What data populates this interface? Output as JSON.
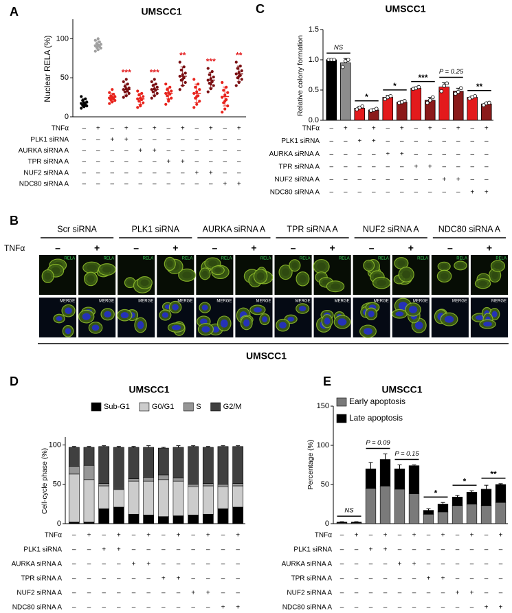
{
  "chart_data": [
    {
      "panel": "A",
      "type": "dot",
      "title": "UMSCC1",
      "ylabel": "Nuclear RELA (%)",
      "ylim": [
        0,
        125
      ],
      "yticks": [
        0,
        50,
        100
      ],
      "colors": [
        "#000000",
        "#a0a0a0",
        "#e8231c",
        "#7a0f12",
        "#e8231c",
        "#7a0f12",
        "#e8231c",
        "#7a0f12",
        "#e8231c",
        "#7a0f12",
        "#e8231c",
        "#7a0f12"
      ],
      "groups": [
        {
          "points": [
            11,
            13,
            14,
            15,
            16,
            17,
            18,
            19,
            21,
            23,
            26,
            14
          ],
          "mean": 18,
          "sd": 5
        },
        {
          "points": [
            84,
            86,
            88,
            89,
            90,
            91,
            92,
            93,
            94,
            96,
            98,
            100
          ],
          "mean": 92,
          "sd": 5
        },
        {
          "points": [
            17,
            19,
            21,
            22,
            23,
            24,
            25,
            26,
            27,
            29,
            31,
            35
          ],
          "mean": 25,
          "sd": 5
        },
        {
          "points": [
            25,
            27,
            30,
            32,
            33,
            35,
            36,
            37,
            39,
            42,
            45,
            48
          ],
          "mean": 35,
          "sd": 7
        },
        {
          "points": [
            12,
            15,
            18,
            20,
            22,
            23,
            24,
            26,
            28,
            30,
            33,
            14
          ],
          "mean": 23,
          "sd": 7
        },
        {
          "points": [
            24,
            27,
            30,
            32,
            34,
            35,
            36,
            38,
            40,
            42,
            45,
            48
          ],
          "mean": 35,
          "sd": 7
        },
        {
          "points": [
            16,
            20,
            24,
            27,
            29,
            30,
            31,
            33,
            35,
            38,
            42,
            22
          ],
          "mean": 30,
          "sd": 7
        },
        {
          "points": [
            35,
            40,
            44,
            47,
            50,
            52,
            54,
            56,
            60,
            64,
            70,
            48
          ],
          "mean": 52,
          "sd": 12
        },
        {
          "points": [
            12,
            16,
            20,
            24,
            27,
            30,
            32,
            35,
            38,
            42,
            48,
            26
          ],
          "mean": 30,
          "sd": 12
        },
        {
          "points": [
            32,
            36,
            40,
            43,
            45,
            47,
            49,
            51,
            54,
            58,
            62,
            42
          ],
          "mean": 47,
          "sd": 10
        },
        {
          "points": [
            6,
            10,
            14,
            18,
            22,
            25,
            28,
            31,
            34,
            38,
            44,
            20
          ],
          "mean": 26,
          "sd": 12
        },
        {
          "points": [
            40,
            44,
            48,
            50,
            53,
            55,
            57,
            59,
            62,
            65,
            70,
            52
          ],
          "mean": 55,
          "sd": 10
        }
      ],
      "annotations": [
        null,
        null,
        null,
        "***",
        null,
        "***",
        null,
        "**",
        null,
        "***",
        null,
        "**"
      ],
      "conditions": [
        {
          "label": "TNFα",
          "signs": [
            "–",
            "+",
            "–",
            "+",
            "–",
            "+",
            "–",
            "+",
            "–",
            "+",
            "–",
            "+"
          ]
        },
        {
          "label": "PLK1 siRNA",
          "signs": [
            "–",
            "–",
            "+",
            "+",
            "–",
            "–",
            "–",
            "–",
            "–",
            "–",
            "–",
            "–"
          ]
        },
        {
          "label": "AURKA siRNA A",
          "signs": [
            "–",
            "–",
            "–",
            "–",
            "+",
            "+",
            "–",
            "–",
            "–",
            "–",
            "–",
            "–"
          ]
        },
        {
          "label": "TPR siRNA A",
          "signs": [
            "–",
            "–",
            "–",
            "–",
            "–",
            "–",
            "+",
            "+",
            "–",
            "–",
            "–",
            "–"
          ]
        },
        {
          "label": "NUF2 siRNA A",
          "signs": [
            "–",
            "–",
            "–",
            "–",
            "–",
            "–",
            "–",
            "–",
            "+",
            "+",
            "–",
            "–"
          ]
        },
        {
          "label": "NDC80 siRNA A",
          "signs": [
            "–",
            "–",
            "–",
            "–",
            "–",
            "–",
            "–",
            "–",
            "–",
            "–",
            "+",
            "+"
          ]
        }
      ]
    },
    {
      "panel": "C",
      "type": "bar",
      "title": "UMSCC1",
      "ylabel": "Relative colony formation",
      "ylim": [
        0,
        1.5
      ],
      "yticks": [
        {
          "value": 0,
          "label": "0.0"
        },
        {
          "value": 0.5,
          "label": "0.5"
        },
        {
          "value": 1,
          "label": "1.0"
        },
        {
          "value": 1.5,
          "label": "1.5"
        }
      ],
      "colors": [
        "#000000",
        "#8c8c8c",
        "#e31a1c",
        "#8b1a1a",
        "#e31a1c",
        "#8b1a1a",
        "#e31a1c",
        "#8b1a1a",
        "#e31a1c",
        "#8b1a1a",
        "#e31a1c",
        "#8b1a1a"
      ],
      "values": [
        1.0,
        0.95,
        0.2,
        0.17,
        0.38,
        0.3,
        0.53,
        0.33,
        0.55,
        0.48,
        0.38,
        0.27
      ],
      "errors": [
        0,
        0.07,
        0.03,
        0.02,
        0.03,
        0.02,
        0.02,
        0.05,
        0.07,
        0.05,
        0.02,
        0.02
      ],
      "points": [
        [
          1,
          1,
          1
        ],
        [
          0.88,
          0.98,
          1.0
        ],
        [
          0.18,
          0.21,
          0.23
        ],
        [
          0.16,
          0.17,
          0.19
        ],
        [
          0.35,
          0.38,
          0.4
        ],
        [
          0.29,
          0.3,
          0.32
        ],
        [
          0.52,
          0.53,
          0.55
        ],
        [
          0.29,
          0.33,
          0.38
        ],
        [
          0.48,
          0.57,
          0.61
        ],
        [
          0.44,
          0.47,
          0.53
        ],
        [
          0.36,
          0.38,
          0.4
        ],
        [
          0.25,
          0.28,
          0.29
        ]
      ],
      "pair_labels": [
        "NS",
        "*",
        "*",
        "***",
        "P = 0.25",
        "**"
      ],
      "conditions": [
        {
          "label": "TNFα",
          "signs": [
            "–",
            "+",
            "–",
            "+",
            "–",
            "+",
            "–",
            "+",
            "–",
            "+",
            "–",
            "+"
          ]
        },
        {
          "label": "PLK1 siRNA",
          "signs": [
            "–",
            "–",
            "+",
            "+",
            "–",
            "–",
            "–",
            "–",
            "–",
            "–",
            "–",
            "–"
          ]
        },
        {
          "label": "AURKA siRNA A",
          "signs": [
            "–",
            "–",
            "–",
            "–",
            "+",
            "+",
            "–",
            "–",
            "–",
            "–",
            "–",
            "–"
          ]
        },
        {
          "label": "TPR siRNA A",
          "signs": [
            "–",
            "–",
            "–",
            "–",
            "–",
            "–",
            "+",
            "+",
            "–",
            "–",
            "–",
            "–"
          ]
        },
        {
          "label": "NUF2 siRNA A",
          "signs": [
            "–",
            "–",
            "–",
            "–",
            "–",
            "–",
            "–",
            "–",
            "+",
            "+",
            "–",
            "–"
          ]
        },
        {
          "label": "NDC80 siRNA A",
          "signs": [
            "–",
            "–",
            "–",
            "–",
            "–",
            "–",
            "–",
            "–",
            "–",
            "–",
            "+",
            "+"
          ]
        }
      ]
    },
    {
      "panel": "D",
      "type": "stacked",
      "title": "UMSCC1",
      "ylabel": "Cell-cycle phase (%)",
      "ylim": [
        0,
        110
      ],
      "yticks": [
        0,
        50,
        100
      ],
      "legend": "top",
      "series": [
        {
          "name": "Sub-G1",
          "color": "#000000",
          "values": [
            2,
            2,
            19,
            21,
            12,
            11,
            9,
            10,
            11,
            12,
            19,
            21
          ]
        },
        {
          "name": "G0/G1",
          "color": "#cccccc",
          "values": [
            61,
            54,
            29,
            22,
            42,
            43,
            47,
            44,
            36,
            36,
            28,
            27
          ]
        },
        {
          "name": "S",
          "color": "#969696",
          "values": [
            10,
            18,
            3,
            2,
            3,
            5,
            6,
            4,
            3,
            3,
            3,
            3
          ]
        },
        {
          "name": "G2/M",
          "color": "#404040",
          "values": [
            24,
            23,
            47,
            52,
            40,
            38,
            34,
            39,
            48,
            46,
            48,
            47
          ],
          "errors": [
            1,
            1,
            1,
            1,
            1,
            2,
            1,
            2,
            1,
            1,
            1,
            1
          ]
        }
      ],
      "conditions": [
        {
          "label": "TNFα",
          "signs": [
            "–",
            "+",
            "–",
            "+",
            "–",
            "+",
            "–",
            "+",
            "–",
            "+",
            "–",
            "+"
          ]
        },
        {
          "label": "PLK1 siRNA",
          "signs": [
            "–",
            "–",
            "+",
            "+",
            "–",
            "–",
            "–",
            "–",
            "–",
            "–",
            "–",
            "–"
          ]
        },
        {
          "label": "AURKA siRNA A",
          "signs": [
            "–",
            "–",
            "–",
            "–",
            "+",
            "+",
            "–",
            "–",
            "–",
            "–",
            "–",
            "–"
          ]
        },
        {
          "label": "TPR siRNA A",
          "signs": [
            "–",
            "–",
            "–",
            "–",
            "–",
            "–",
            "+",
            "+",
            "–",
            "–",
            "–",
            "–"
          ]
        },
        {
          "label": "NUF2 siRNA A",
          "signs": [
            "–",
            "–",
            "–",
            "–",
            "–",
            "–",
            "–",
            "–",
            "+",
            "+",
            "–",
            "–"
          ]
        },
        {
          "label": "NDC80 siRNA A",
          "signs": [
            "–",
            "–",
            "–",
            "–",
            "–",
            "–",
            "–",
            "–",
            "–",
            "–",
            "+",
            "+"
          ]
        }
      ]
    },
    {
      "panel": "E",
      "type": "stacked",
      "title": "UMSCC1",
      "ylabel": "Percentage (%)",
      "ylim": [
        0,
        150
      ],
      "yticks": [
        0,
        50,
        100,
        150
      ],
      "legend": "top-left",
      "series": [
        {
          "name": "Early apoptosis",
          "color": "#7a7a7a",
          "values": [
            1,
            1,
            45,
            48,
            44,
            38,
            12,
            15,
            23,
            25,
            23,
            27
          ]
        },
        {
          "name": "Late apoptosis",
          "color": "#000000",
          "values": [
            1,
            1,
            25,
            34,
            26,
            36,
            5,
            10,
            11,
            15,
            21,
            23
          ],
          "errors": [
            0.5,
            0.5,
            8,
            7,
            5,
            1,
            2,
            2,
            2,
            2,
            5,
            1
          ]
        }
      ],
      "pair_labels": [
        "NS",
        "P = 0.09",
        "P = 0.15",
        "*",
        "*",
        "**"
      ],
      "conditions": [
        {
          "label": "TNFα",
          "signs": [
            "–",
            "+",
            "–",
            "+",
            "–",
            "+",
            "–",
            "+",
            "–",
            "+",
            "–",
            "+"
          ]
        },
        {
          "label": "PLK1 siRNA",
          "signs": [
            "–",
            "–",
            "+",
            "+",
            "–",
            "–",
            "–",
            "–",
            "–",
            "–",
            "–",
            "–"
          ]
        },
        {
          "label": "AURKA siRNA A",
          "signs": [
            "–",
            "–",
            "–",
            "–",
            "+",
            "+",
            "–",
            "–",
            "–",
            "–",
            "–",
            "–"
          ]
        },
        {
          "label": "TPR siRNA A",
          "signs": [
            "–",
            "–",
            "–",
            "–",
            "–",
            "–",
            "+",
            "+",
            "–",
            "–",
            "–",
            "–"
          ]
        },
        {
          "label": "NUF2 siRNA A",
          "signs": [
            "–",
            "–",
            "–",
            "–",
            "–",
            "–",
            "–",
            "–",
            "+",
            "+",
            "–",
            "–"
          ]
        },
        {
          "label": "NDC80 siRNA A",
          "signs": [
            "–",
            "–",
            "–",
            "–",
            "–",
            "–",
            "–",
            "–",
            "–",
            "–",
            "+",
            "+"
          ]
        }
      ]
    }
  ],
  "panel_b": {
    "panel": "B",
    "groups": [
      "Scr siRNA",
      "PLK1 siRNA",
      "AURKA siRNA A",
      "TPR siRNA A",
      "NUF2 siRNA A",
      "NDC80 siRNA A"
    ],
    "treatment": "TNFα",
    "signs": [
      "–",
      "+"
    ],
    "channels": [
      "RELA",
      "MERGE"
    ],
    "footer": "UMSCC1"
  }
}
